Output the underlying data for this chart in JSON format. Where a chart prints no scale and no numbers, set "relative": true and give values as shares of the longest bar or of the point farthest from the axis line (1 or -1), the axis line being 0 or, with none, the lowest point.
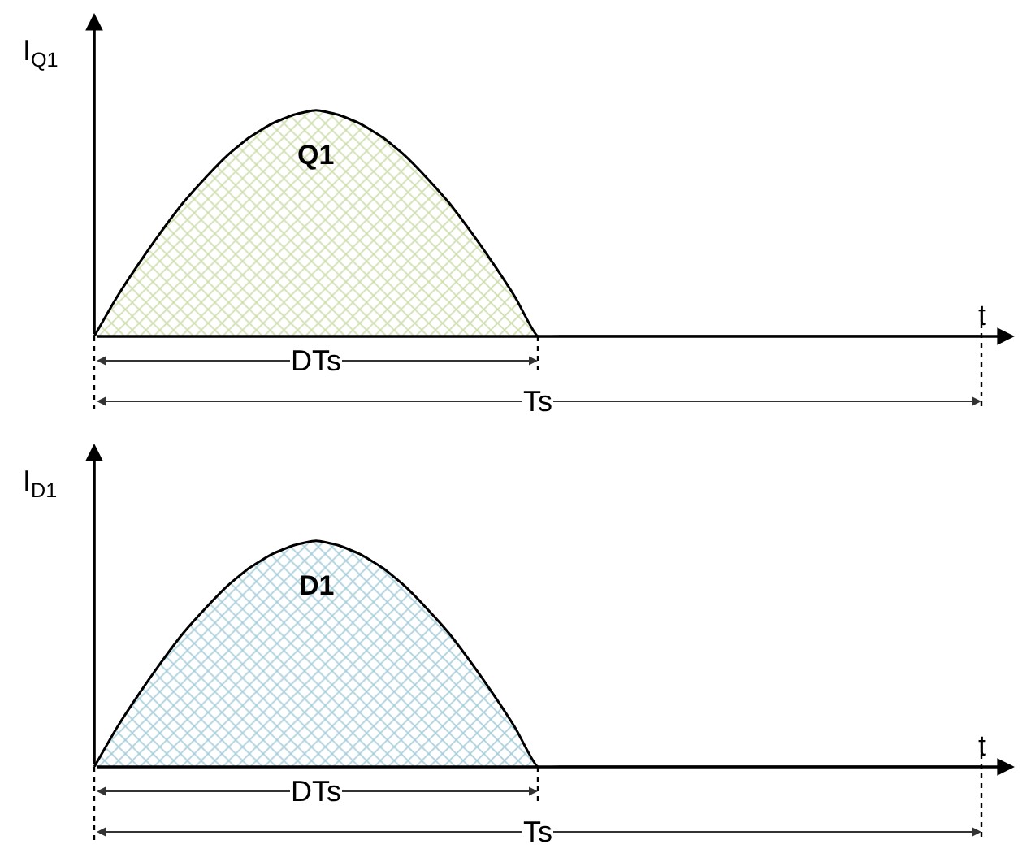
{
  "chart_data": [
    {
      "type": "area",
      "relative": true,
      "xlabel": "t",
      "ylabel": "I$_{Q1}$",
      "annotations": [
        "DTs",
        "Ts"
      ],
      "categories": [
        null,
        null,
        null,
        null,
        null,
        null,
        null,
        null,
        null,
        null,
        null,
        null,
        null,
        null,
        null,
        null,
        null,
        null,
        null,
        null,
        null,
        null,
        null,
        null,
        null,
        null,
        null,
        null,
        null,
        null,
        null,
        null,
        null,
        null,
        null,
        null,
        null,
        null,
        null,
        null,
        null
      ],
      "series": [
        {
          "name": "Q1",
          "color": "#9bbb59",
          "values": [
            0,
            0.17,
            0.32,
            0.46,
            0.59,
            0.7,
            0.8,
            0.88,
            0.94,
            0.98,
            1,
            0.98,
            0.94,
            0.88,
            0.8,
            0.7,
            0.59,
            0.46,
            0.32,
            0.17,
            0,
            0,
            0,
            0,
            0,
            0,
            0,
            0,
            0,
            0,
            0,
            0,
            0,
            0,
            0,
            0,
            0,
            0,
            0,
            0,
            0
          ]
        }
      ]
    },
    {
      "type": "area",
      "relative": true,
      "xlabel": "t",
      "ylabel": "I$_{D1}$",
      "annotations": [
        "DTs",
        "Ts"
      ],
      "categories": [
        null,
        null,
        null,
        null,
        null,
        null,
        null,
        null,
        null,
        null,
        null,
        null,
        null,
        null,
        null,
        null,
        null,
        null,
        null,
        null,
        null,
        null,
        null,
        null,
        null,
        null,
        null,
        null,
        null,
        null,
        null,
        null,
        null,
        null,
        null,
        null,
        null,
        null,
        null,
        null,
        null
      ],
      "series": [
        {
          "name": "D1",
          "color": "#4f9cb3",
          "values": [
            0,
            0.17,
            0.32,
            0.46,
            0.59,
            0.7,
            0.8,
            0.88,
            0.94,
            0.98,
            1,
            0.98,
            0.94,
            0.88,
            0.8,
            0.7,
            0.59,
            0.46,
            0.32,
            0.17,
            0,
            0,
            0,
            0,
            0,
            0,
            0,
            0,
            0,
            0,
            0,
            0,
            0,
            0,
            0,
            0,
            0,
            0,
            0,
            0,
            0
          ]
        }
      ]
    }
  ]
}
